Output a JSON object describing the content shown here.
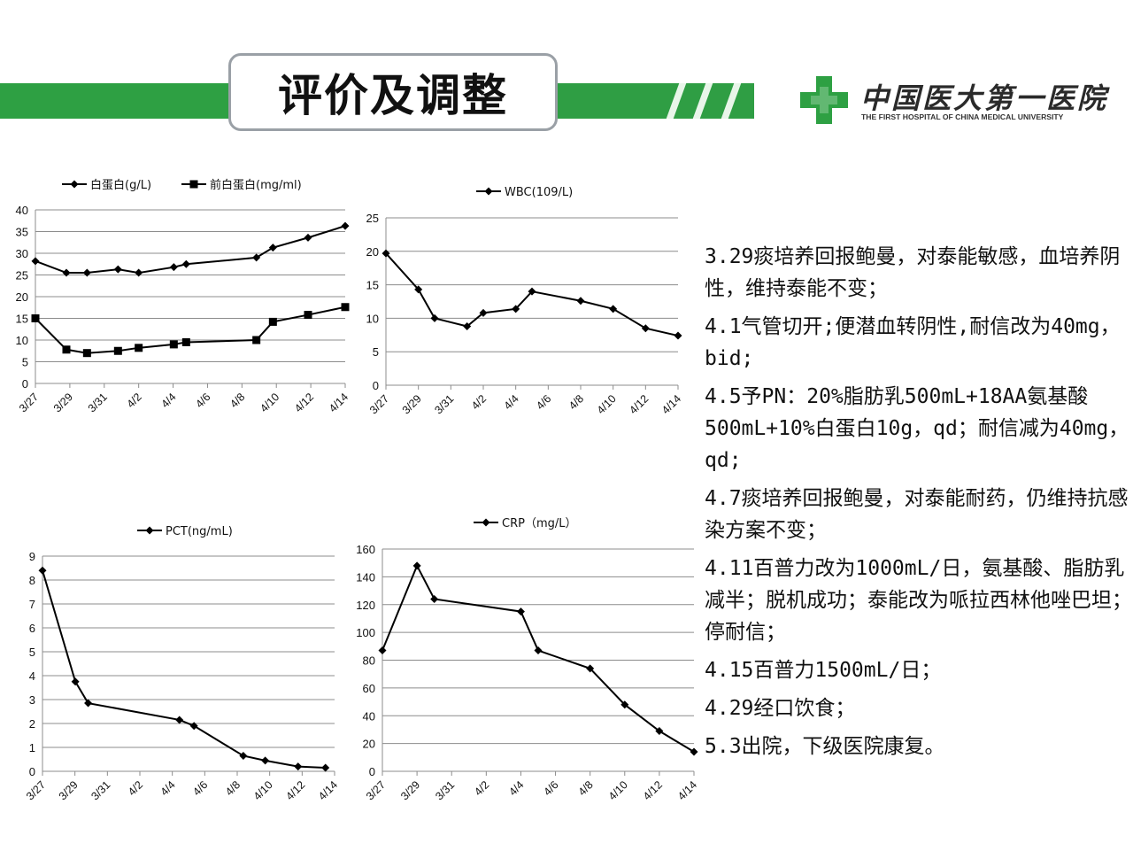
{
  "header": {
    "title": "评价及调整",
    "logo_cn": "中国医大第一医院",
    "logo_en": "THE FIRST HOSPITAL OF CHINA MEDICAL UNIVERSITY",
    "brand_color": "#2ea043"
  },
  "chart_data": [
    {
      "id": "albumin",
      "type": "line",
      "x": [
        "3/27",
        "3/29",
        "3/30",
        "3/31",
        "4/1",
        "4/2",
        "4/4",
        "4/5",
        "4/8",
        "4/10",
        "4/12",
        "4/14"
      ],
      "xticks": [
        "3/27",
        "3/29",
        "3/31",
        "4/2",
        "4/4",
        "4/6",
        "4/8",
        "4/10",
        "4/12",
        "4/14"
      ],
      "ylim": [
        0,
        40
      ],
      "yticks": [
        0,
        5,
        10,
        15,
        20,
        25,
        30,
        35,
        40
      ],
      "grid": true,
      "legend": "top",
      "series": [
        {
          "name": "白蛋白(g/L)",
          "marker": "diamond",
          "values": [
            28.2,
            25.5,
            null,
            25.5,
            26.3,
            25.5,
            26.8,
            27.5,
            29.0,
            31.3,
            33.6,
            36.3
          ],
          "x_pos": [
            0,
            1.5,
            null,
            2.5,
            4,
            5,
            6.7,
            7.3,
            10.7,
            11.5,
            13.2,
            15
          ]
        },
        {
          "name": "前白蛋白(mg/ml)",
          "marker": "square",
          "values": [
            15.0,
            7.8,
            null,
            7.0,
            7.5,
            8.2,
            9.0,
            9.5,
            10.0,
            14.2,
            15.8,
            17.6
          ],
          "x_pos": [
            0,
            1.5,
            null,
            2.5,
            4,
            5,
            6.7,
            7.3,
            10.7,
            11.5,
            13.2,
            15
          ]
        }
      ]
    },
    {
      "id": "wbc",
      "type": "line",
      "xticks": [
        "3/27",
        "3/29",
        "3/31",
        "4/2",
        "4/4",
        "4/6",
        "4/8",
        "4/10",
        "4/12",
        "4/14"
      ],
      "ylim": [
        0,
        25
      ],
      "yticks": [
        0,
        5,
        10,
        15,
        20,
        25
      ],
      "grid": true,
      "legend": "top",
      "series": [
        {
          "name": "WBC(109/L)",
          "marker": "diamond",
          "values": [
            19.7,
            14.3,
            10.0,
            8.8,
            10.8,
            11.4,
            14.0,
            12.6,
            11.4,
            8.5,
            7.4
          ],
          "x_pos": [
            0,
            2,
            3,
            5,
            6,
            8,
            9,
            12,
            14,
            16,
            18
          ]
        }
      ]
    },
    {
      "id": "pct",
      "type": "line",
      "xticks": [
        "3/27",
        "3/29",
        "3/31",
        "4/2",
        "4/4",
        "4/6",
        "4/8",
        "4/10",
        "4/12",
        "4/14"
      ],
      "ylim": [
        0,
        9
      ],
      "yticks": [
        0,
        1,
        2,
        3,
        4,
        5,
        6,
        7,
        8,
        9
      ],
      "grid": true,
      "legend": "top",
      "series": [
        {
          "name": "PCT(ng/mL)",
          "marker": "diamond",
          "values": [
            8.4,
            3.75,
            2.85,
            2.15,
            1.9,
            0.65,
            0.45,
            0.2,
            0.15
          ],
          "x_pos": [
            0,
            1.8,
            2.5,
            7.5,
            8.3,
            11,
            12.2,
            14,
            15.5
          ]
        }
      ]
    },
    {
      "id": "crp",
      "type": "line",
      "xticks": [
        "3/27",
        "3/29",
        "3/31",
        "4/2",
        "4/4",
        "4/6",
        "4/8",
        "4/10",
        "4/12",
        "4/14"
      ],
      "ylim": [
        0,
        160
      ],
      "yticks": [
        0,
        20,
        40,
        60,
        80,
        100,
        120,
        140,
        160
      ],
      "grid": true,
      "legend": "top",
      "series": [
        {
          "name": "CRP（mg/L）",
          "marker": "diamond",
          "values": [
            87,
            148,
            124,
            115,
            87,
            74,
            48,
            29,
            14
          ],
          "x_pos": [
            0,
            2,
            3,
            8,
            9,
            12,
            14,
            16,
            18
          ]
        }
      ]
    }
  ],
  "notes": [
    "3.29痰培养回报鲍曼，对泰能敏感，血培养阴性，维持泰能不变；",
    "4.1气管切开;便潜血转阴性,耐信改为40mg，bid;",
    "4.5予PN：20%脂肪乳500mL+18AA氨基酸500mL+10%白蛋白10g，qd；耐信减为40mg，qd;",
    "4.7痰培养回报鲍曼，对泰能耐药，仍维持抗感染方案不变；",
    "4.11百普力改为1000mL/日，氨基酸、脂肪乳减半；脱机成功；泰能改为哌拉西林他唑巴坦；停耐信；",
    "4.15百普力1500mL/日；",
    "4.29经口饮食；",
    "5.3出院，下级医院康复。"
  ]
}
